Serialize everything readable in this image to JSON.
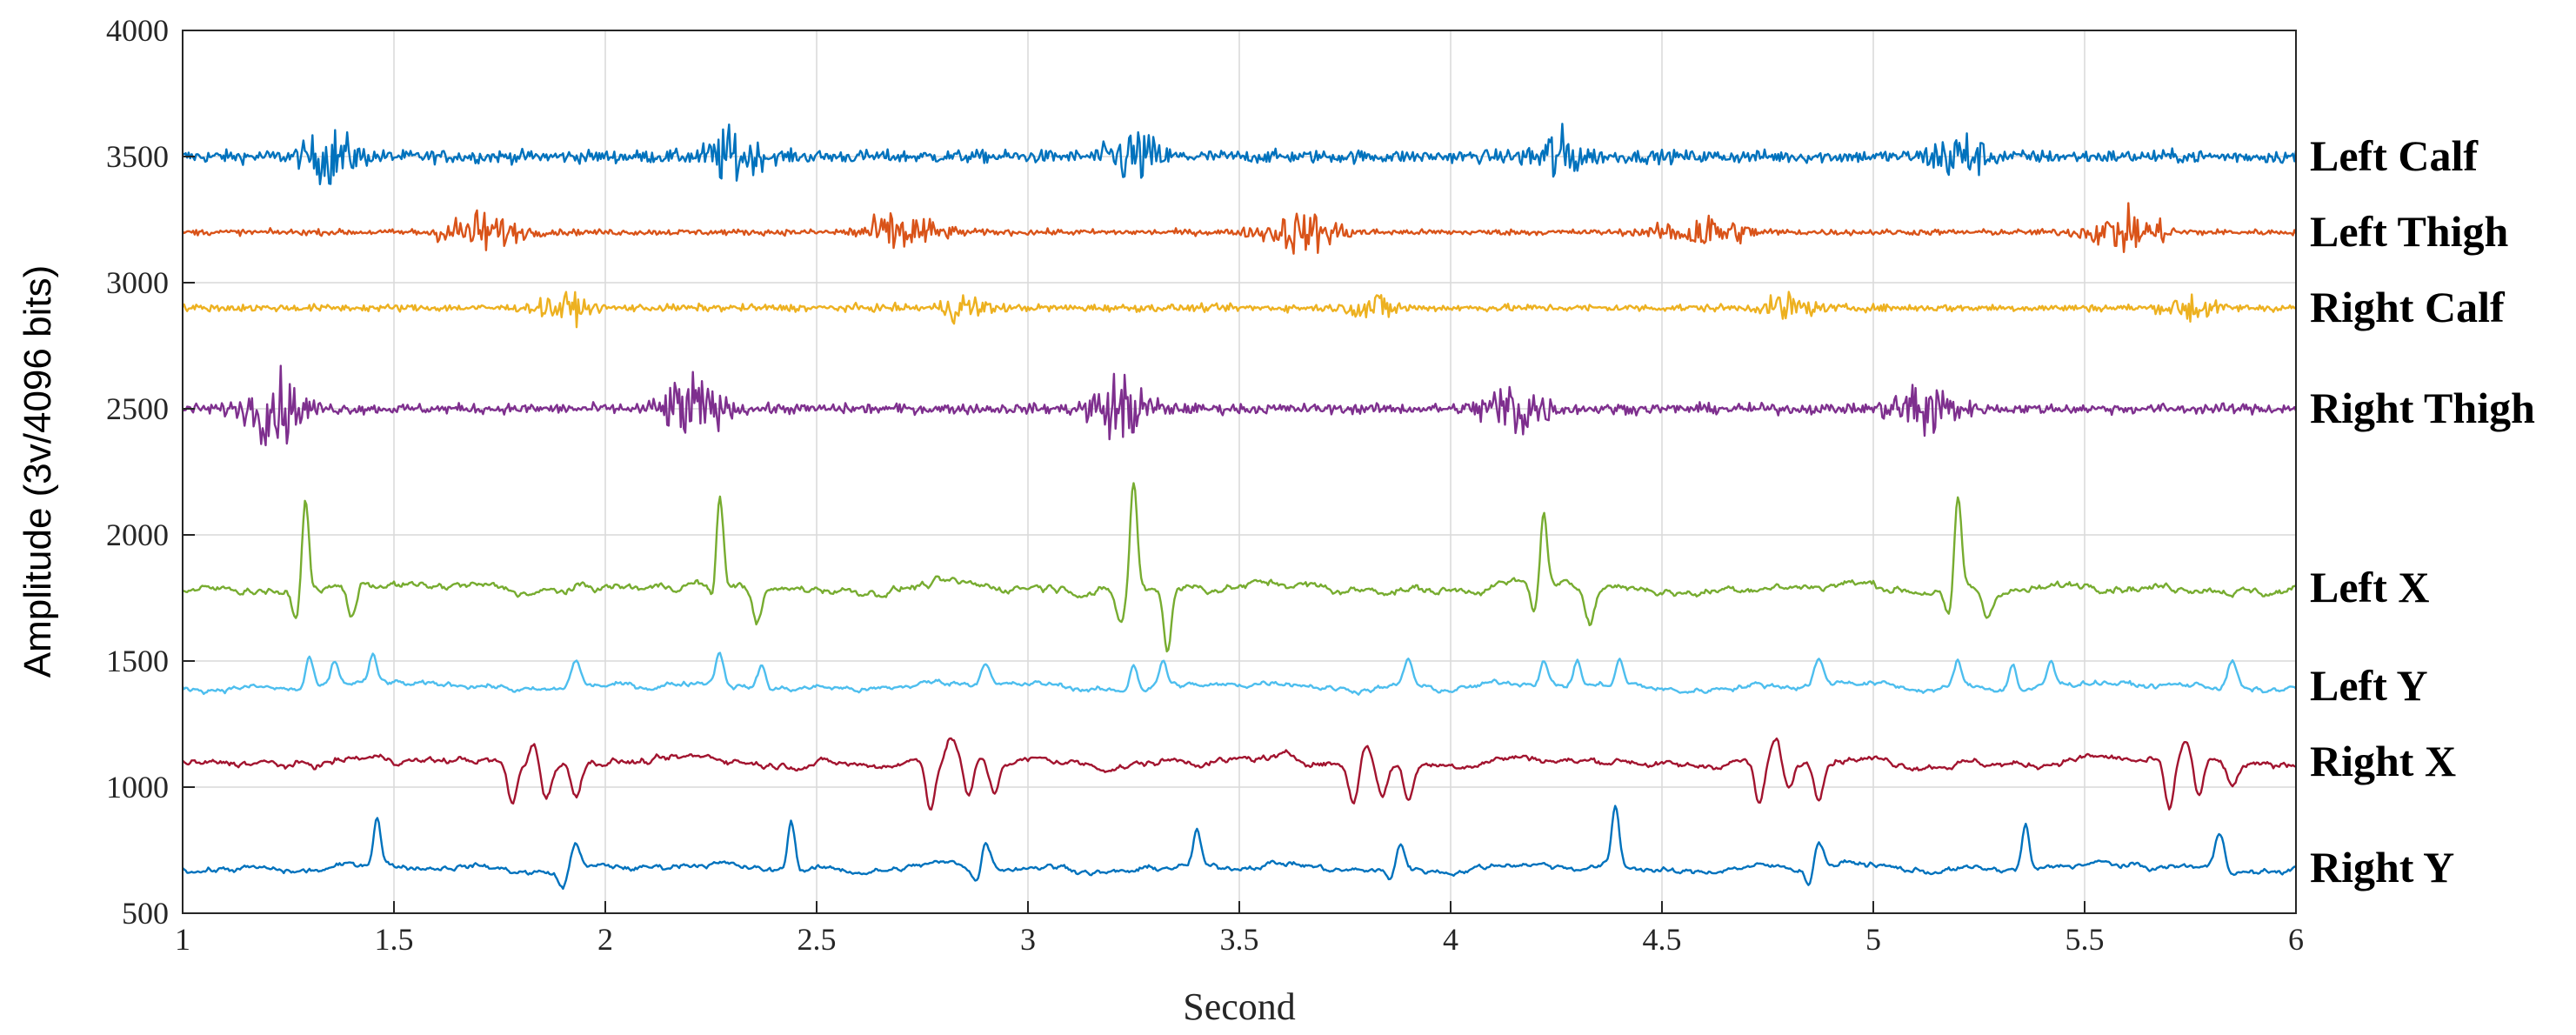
{
  "chart_data": {
    "type": "line",
    "title": "",
    "xlabel": "Second",
    "ylabel": "Amplitude (3v/4096 bits)",
    "xlim": [
      1,
      6
    ],
    "ylim": [
      500,
      4000
    ],
    "xticks": [
      1,
      1.5,
      2,
      2.5,
      3,
      3.5,
      4,
      4.5,
      5,
      5.5,
      6
    ],
    "xtick_labels": [
      "1",
      "1.5",
      "2",
      "2.5",
      "3",
      "3.5",
      "4",
      "4.5",
      "5",
      "5.5",
      "6"
    ],
    "yticks": [
      500,
      1000,
      1500,
      2000,
      2500,
      3000,
      3500,
      4000
    ],
    "ytick_labels": [
      "500",
      "1000",
      "1500",
      "2000",
      "2500",
      "3000",
      "3500",
      "4000"
    ],
    "grid": true,
    "legend_position": "right (inline labels beside each trace)",
    "series": [
      {
        "name": "Left Calf",
        "kind": "emg",
        "baseline": 3500,
        "noise": 18,
        "burst_amp": 70,
        "bursts": [
          1.35,
          2.3,
          3.25,
          4.25,
          5.2
        ],
        "burst_width": 0.06,
        "color": "#0072BD"
      },
      {
        "name": "Left Thigh",
        "kind": "emg",
        "baseline": 3200,
        "noise": 8,
        "burst_amp": 55,
        "bursts": [
          1.7,
          2.7,
          3.65,
          4.6,
          5.6
        ],
        "burst_width": 0.09,
        "color": "#D95319"
      },
      {
        "name": "Right Calf",
        "kind": "emg",
        "baseline": 2900,
        "noise": 10,
        "burst_amp": 40,
        "bursts": [
          1.9,
          2.85,
          3.82,
          4.8,
          5.75
        ],
        "burst_width": 0.05,
        "color": "#EDB120"
      },
      {
        "name": "Right Thigh",
        "kind": "emg",
        "baseline": 2500,
        "noise": 14,
        "burst_amp": 90,
        "bursts": [
          1.22,
          2.2,
          3.22,
          4.15,
          5.12
        ],
        "burst_width": 0.07,
        "color": "#7E2F8E"
      },
      {
        "name": "Left X",
        "kind": "accel",
        "baseline": 1790,
        "noise": 14,
        "peaks": [
          {
            "t": 1.29,
            "a": 380,
            "w": 0.012
          },
          {
            "t": 2.27,
            "a": 420,
            "w": 0.012
          },
          {
            "t": 3.25,
            "a": 430,
            "w": 0.012
          },
          {
            "t": 4.22,
            "a": 300,
            "w": 0.012
          },
          {
            "t": 5.2,
            "a": 380,
            "w": 0.012
          },
          {
            "t": 1.27,
            "a": -130,
            "w": 0.015
          },
          {
            "t": 1.4,
            "a": -120,
            "w": 0.015
          },
          {
            "t": 2.26,
            "a": -130,
            "w": 0.015
          },
          {
            "t": 2.36,
            "a": -120,
            "w": 0.015
          },
          {
            "t": 3.22,
            "a": -120,
            "w": 0.015
          },
          {
            "t": 3.33,
            "a": -250,
            "w": 0.012
          },
          {
            "t": 4.2,
            "a": -110,
            "w": 0.015
          },
          {
            "t": 4.33,
            "a": -120,
            "w": 0.015
          },
          {
            "t": 5.18,
            "a": -130,
            "w": 0.015
          },
          {
            "t": 5.27,
            "a": -110,
            "w": 0.015
          }
        ],
        "color": "#77AC30"
      },
      {
        "name": "Left Y",
        "kind": "accel",
        "baseline": 1400,
        "noise": 10,
        "peaks": [
          {
            "t": 1.3,
            "a": 130,
            "w": 0.012
          },
          {
            "t": 1.36,
            "a": 90,
            "w": 0.012
          },
          {
            "t": 1.45,
            "a": 100,
            "w": 0.012
          },
          {
            "t": 1.93,
            "a": 110,
            "w": 0.015
          },
          {
            "t": 2.27,
            "a": 130,
            "w": 0.012
          },
          {
            "t": 2.37,
            "a": 90,
            "w": 0.012
          },
          {
            "t": 2.9,
            "a": 100,
            "w": 0.015
          },
          {
            "t": 3.25,
            "a": 110,
            "w": 0.012
          },
          {
            "t": 3.32,
            "a": 100,
            "w": 0.012
          },
          {
            "t": 3.9,
            "a": 110,
            "w": 0.015
          },
          {
            "t": 4.22,
            "a": 100,
            "w": 0.012
          },
          {
            "t": 4.3,
            "a": 100,
            "w": 0.012
          },
          {
            "t": 4.4,
            "a": 100,
            "w": 0.012
          },
          {
            "t": 4.87,
            "a": 100,
            "w": 0.015
          },
          {
            "t": 5.2,
            "a": 110,
            "w": 0.012
          },
          {
            "t": 5.33,
            "a": 100,
            "w": 0.012
          },
          {
            "t": 5.42,
            "a": 100,
            "w": 0.012
          },
          {
            "t": 5.85,
            "a": 110,
            "w": 0.015
          }
        ],
        "color": "#4DBEEE"
      },
      {
        "name": "Right X",
        "kind": "accel",
        "baseline": 1100,
        "noise": 12,
        "peaks": [
          {
            "t": 1.78,
            "a": -160,
            "w": 0.015
          },
          {
            "t": 1.86,
            "a": -120,
            "w": 0.015
          },
          {
            "t": 1.93,
            "a": -130,
            "w": 0.015
          },
          {
            "t": 2.77,
            "a": -190,
            "w": 0.015
          },
          {
            "t": 2.86,
            "a": -150,
            "w": 0.015
          },
          {
            "t": 2.92,
            "a": -130,
            "w": 0.015
          },
          {
            "t": 3.77,
            "a": -150,
            "w": 0.015
          },
          {
            "t": 3.84,
            "a": -130,
            "w": 0.015
          },
          {
            "t": 3.9,
            "a": -150,
            "w": 0.015
          },
          {
            "t": 4.73,
            "a": -180,
            "w": 0.015
          },
          {
            "t": 4.8,
            "a": -110,
            "w": 0.015
          },
          {
            "t": 4.87,
            "a": -130,
            "w": 0.015
          },
          {
            "t": 5.7,
            "a": -200,
            "w": 0.015
          },
          {
            "t": 5.77,
            "a": -140,
            "w": 0.015
          },
          {
            "t": 5.85,
            "a": -100,
            "w": 0.015
          },
          {
            "t": 1.83,
            "a": 90,
            "w": 0.015
          },
          {
            "t": 2.82,
            "a": 80,
            "w": 0.015
          },
          {
            "t": 3.8,
            "a": 80,
            "w": 0.015
          },
          {
            "t": 4.77,
            "a": 80,
            "w": 0.015
          },
          {
            "t": 5.74,
            "a": 80,
            "w": 0.015
          }
        ],
        "color": "#A2142F"
      },
      {
        "name": "Right Y",
        "kind": "accel",
        "baseline": 680,
        "noise": 10,
        "peaks": [
          {
            "t": 1.46,
            "a": 190,
            "w": 0.012
          },
          {
            "t": 1.93,
            "a": 110,
            "w": 0.015
          },
          {
            "t": 2.44,
            "a": 200,
            "w": 0.012
          },
          {
            "t": 2.9,
            "a": 110,
            "w": 0.015
          },
          {
            "t": 3.4,
            "a": 150,
            "w": 0.012
          },
          {
            "t": 3.88,
            "a": 110,
            "w": 0.015
          },
          {
            "t": 4.39,
            "a": 240,
            "w": 0.012
          },
          {
            "t": 4.87,
            "a": 110,
            "w": 0.015
          },
          {
            "t": 5.36,
            "a": 180,
            "w": 0.012
          },
          {
            "t": 5.82,
            "a": 140,
            "w": 0.015
          },
          {
            "t": 1.9,
            "a": -70,
            "w": 0.015
          },
          {
            "t": 2.88,
            "a": -70,
            "w": 0.015
          },
          {
            "t": 3.86,
            "a": -60,
            "w": 0.015
          },
          {
            "t": 4.85,
            "a": -70,
            "w": 0.015
          }
        ],
        "color": "#0072BD"
      }
    ]
  }
}
